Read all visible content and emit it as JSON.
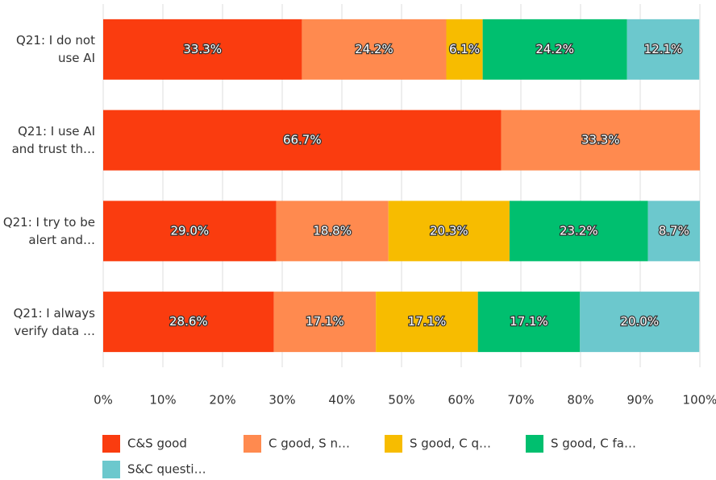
{
  "chart_data": {
    "type": "stacked-bar-horizontal",
    "categories": [
      "Q21: I do not use AI",
      "Q21: I use AI and trust th…",
      "Q21: I try to be alert and…",
      "Q21: I always verify data …"
    ],
    "series": [
      {
        "name": "C&S good",
        "color": "#fa3c0f",
        "values": [
          33.3,
          66.7,
          29.0,
          28.6
        ],
        "value_labels": [
          "33.3%",
          "66.7%",
          "29.0%",
          "28.6%"
        ]
      },
      {
        "name": "C good, S n…",
        "color": "#ff8a4f",
        "values": [
          24.2,
          33.3,
          18.8,
          17.1
        ],
        "value_labels": [
          "24.2%",
          "33.3%",
          "18.8%",
          "17.1%"
        ]
      },
      {
        "name": "S good, C q…",
        "color": "#f7bc00",
        "values": [
          6.1,
          null,
          20.3,
          17.1
        ],
        "value_labels": [
          "6.1%",
          null,
          "20.3%",
          "17.1%"
        ]
      },
      {
        "name": "S good, C fa…",
        "color": "#00bf6f",
        "values": [
          24.2,
          null,
          23.2,
          17.1
        ],
        "value_labels": [
          "24.2%",
          null,
          "23.2%",
          "17.1%"
        ]
      },
      {
        "name": "S&C questi…",
        "color": "#6cc8cd",
        "values": [
          12.1,
          null,
          8.7,
          20.0
        ],
        "value_labels": [
          "12.1%",
          null,
          "8.7%",
          "20.0%"
        ]
      }
    ],
    "xlim": [
      0,
      100
    ],
    "xticks": [
      {
        "value": 0,
        "label": "0%"
      },
      {
        "value": 10,
        "label": "10%"
      },
      {
        "value": 20,
        "label": "20%"
      },
      {
        "value": 30,
        "label": "30%"
      },
      {
        "value": 40,
        "label": "40%"
      },
      {
        "value": 50,
        "label": "50%"
      },
      {
        "value": 60,
        "label": "60%"
      },
      {
        "value": 70,
        "label": "70%"
      },
      {
        "value": 80,
        "label": "80%"
      },
      {
        "value": 90,
        "label": "90%"
      },
      {
        "value": 100,
        "label": "100%"
      }
    ],
    "grid": true
  }
}
